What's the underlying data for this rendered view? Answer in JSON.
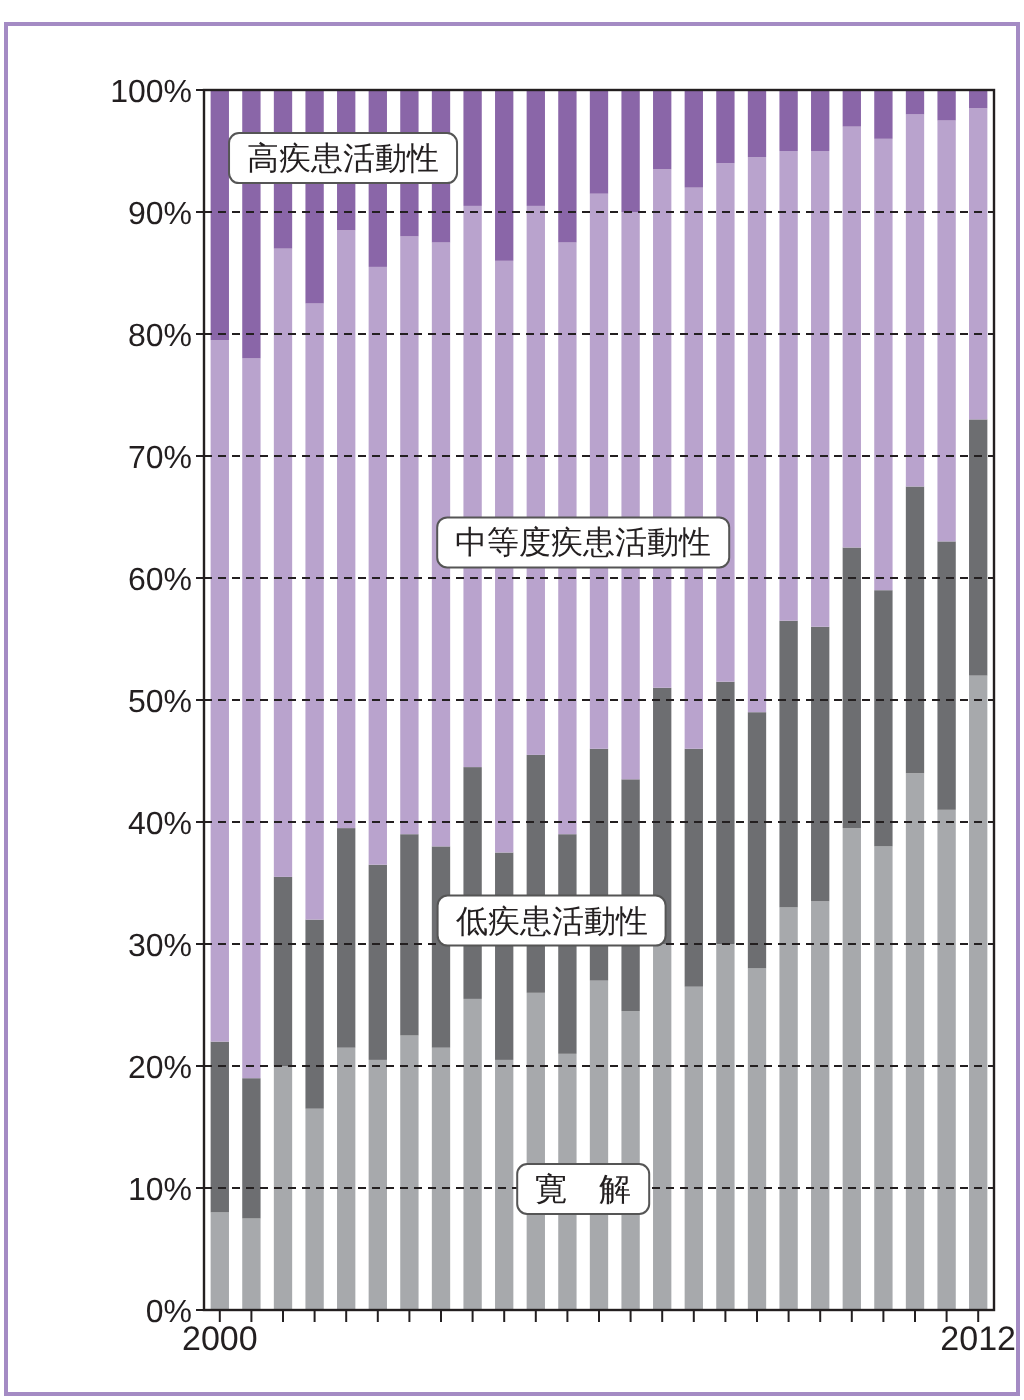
{
  "chart_data": {
    "type": "bar",
    "stacked": true,
    "categories": [
      "2000",
      null,
      null,
      null,
      null,
      null,
      null,
      null,
      null,
      null,
      null,
      null,
      null,
      null,
      null,
      null,
      null,
      null,
      null,
      null,
      null,
      null,
      null,
      null,
      "2012"
    ],
    "series": [
      {
        "name": "寛　解",
        "color": "#a7a9ac",
        "values": [
          8,
          7.5,
          20,
          16.5,
          21.5,
          20.5,
          22.5,
          21.5,
          25.5,
          20.5,
          26,
          21,
          27,
          24.5,
          30,
          26.5,
          30,
          28,
          33,
          33.5,
          39.5,
          38,
          44,
          41,
          52
        ]
      },
      {
        "name": "低疾患活動性",
        "color": "#6d6e71",
        "values": [
          14,
          11.5,
          15.5,
          15.5,
          18,
          16,
          16.5,
          16.5,
          19,
          17,
          19.5,
          18,
          19,
          19,
          21,
          19.5,
          21.5,
          21,
          23.5,
          22.5,
          23,
          21,
          23.5,
          22,
          21
        ]
      },
      {
        "name": "中等度疾患活動性",
        "color": "#b9a3cd",
        "values": [
          57.5,
          59,
          51.5,
          50.5,
          49,
          49,
          49,
          49.5,
          46,
          48.5,
          45,
          48.5,
          45.5,
          46.5,
          42.5,
          46,
          42.5,
          45.5,
          38.5,
          39,
          34.5,
          37,
          30.5,
          34.5,
          25.5
        ]
      },
      {
        "name": "高疾患活動性",
        "color": "#8a66a8",
        "values": [
          20.5,
          22,
          13,
          17.5,
          11.5,
          14.5,
          12,
          12.5,
          9.5,
          14,
          9.5,
          12.5,
          8.5,
          10,
          6.5,
          8,
          6,
          5.5,
          5,
          5,
          3,
          4,
          2,
          2.5,
          1.5
        ]
      }
    ],
    "ylim": [
      0,
      100
    ],
    "yticks": [
      {
        "value": 0,
        "label": "0%"
      },
      {
        "value": 10,
        "label": "10%"
      },
      {
        "value": 20,
        "label": "20%"
      },
      {
        "value": 30,
        "label": "30%"
      },
      {
        "value": 40,
        "label": "40%"
      },
      {
        "value": 50,
        "label": "50%"
      },
      {
        "value": 60,
        "label": "60%"
      },
      {
        "value": 70,
        "label": "70%"
      },
      {
        "value": 80,
        "label": "80%"
      },
      {
        "value": 90,
        "label": "90%"
      },
      {
        "value": 100,
        "label": "100%"
      }
    ],
    "grid": "y"
  }
}
